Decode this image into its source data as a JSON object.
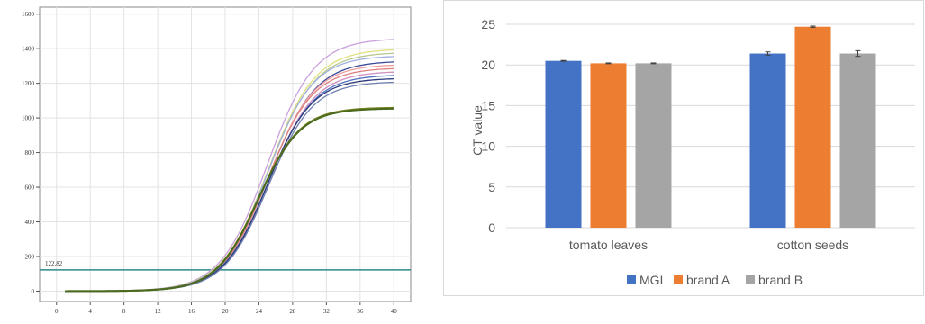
{
  "chart_data": [
    {
      "type": "line",
      "x_ticks": [
        "0",
        "4",
        "8",
        "12",
        "16",
        "20",
        "24",
        "28",
        "32",
        "36",
        "40"
      ],
      "y_ticks": [
        "0",
        "200",
        "400",
        "600",
        "800",
        "1000",
        "1200",
        "1400",
        "1600"
      ],
      "threshold": {
        "value": 122.82,
        "label": "122.82"
      },
      "xlim": [
        -2,
        42
      ],
      "ylim": [
        -60,
        1640
      ],
      "grid": true,
      "series": [
        {
          "plateau": 1460,
          "midpoint": 25.0,
          "slope": 0.36,
          "color": "#c9a0dc"
        },
        {
          "plateau": 1400,
          "midpoint": 25.1,
          "slope": 0.36,
          "color": "#e0e080"
        },
        {
          "plateau": 1380,
          "midpoint": 25.1,
          "slope": 0.36,
          "color": "#b8c890"
        },
        {
          "plateau": 1360,
          "midpoint": 25.0,
          "slope": 0.37,
          "color": "#a0b0e0"
        },
        {
          "plateau": 1330,
          "midpoint": 25.2,
          "slope": 0.36,
          "color": "#3a4a9a"
        },
        {
          "plateau": 1310,
          "midpoint": 25.1,
          "slope": 0.37,
          "color": "#f0a0a0"
        },
        {
          "plateau": 1290,
          "midpoint": 25.0,
          "slope": 0.37,
          "color": "#e08080"
        },
        {
          "plateau": 1270,
          "midpoint": 25.2,
          "slope": 0.37,
          "color": "#d090c0"
        },
        {
          "plateau": 1250,
          "midpoint": 25.1,
          "slope": 0.37,
          "color": "#5070c0"
        },
        {
          "plateau": 1230,
          "midpoint": 25.0,
          "slope": 0.38,
          "color": "#2a3a7a"
        },
        {
          "plateau": 1210,
          "midpoint": 25.1,
          "slope": 0.38,
          "color": "#7080b0"
        },
        {
          "plateau": 1060,
          "midpoint": 23.9,
          "slope": 0.4,
          "color": "#7a8020"
        },
        {
          "plateau": 1055,
          "midpoint": 23.9,
          "slope": 0.4,
          "color": "#4a6a20"
        }
      ]
    },
    {
      "type": "bar",
      "categories": [
        "tomato leaves",
        "cotton seeds"
      ],
      "series": [
        {
          "name": "MGI",
          "values": [
            20.5,
            21.4
          ],
          "errors": [
            0.05,
            0.2
          ],
          "color": "#4472c4"
        },
        {
          "name": "brand A",
          "values": [
            20.2,
            24.7
          ],
          "errors": [
            0.05,
            0.08
          ],
          "color": "#ed7d31"
        },
        {
          "name": "brand B",
          "values": [
            20.2,
            21.4
          ],
          "errors": [
            0.05,
            0.35
          ],
          "color": "#a5a5a5"
        }
      ],
      "ylabel": "CT  value",
      "ylim": [
        0,
        25
      ],
      "y_ticks": [
        "0",
        "5",
        "10",
        "15",
        "20",
        "25"
      ],
      "grid": true,
      "legend": "bottom"
    }
  ]
}
